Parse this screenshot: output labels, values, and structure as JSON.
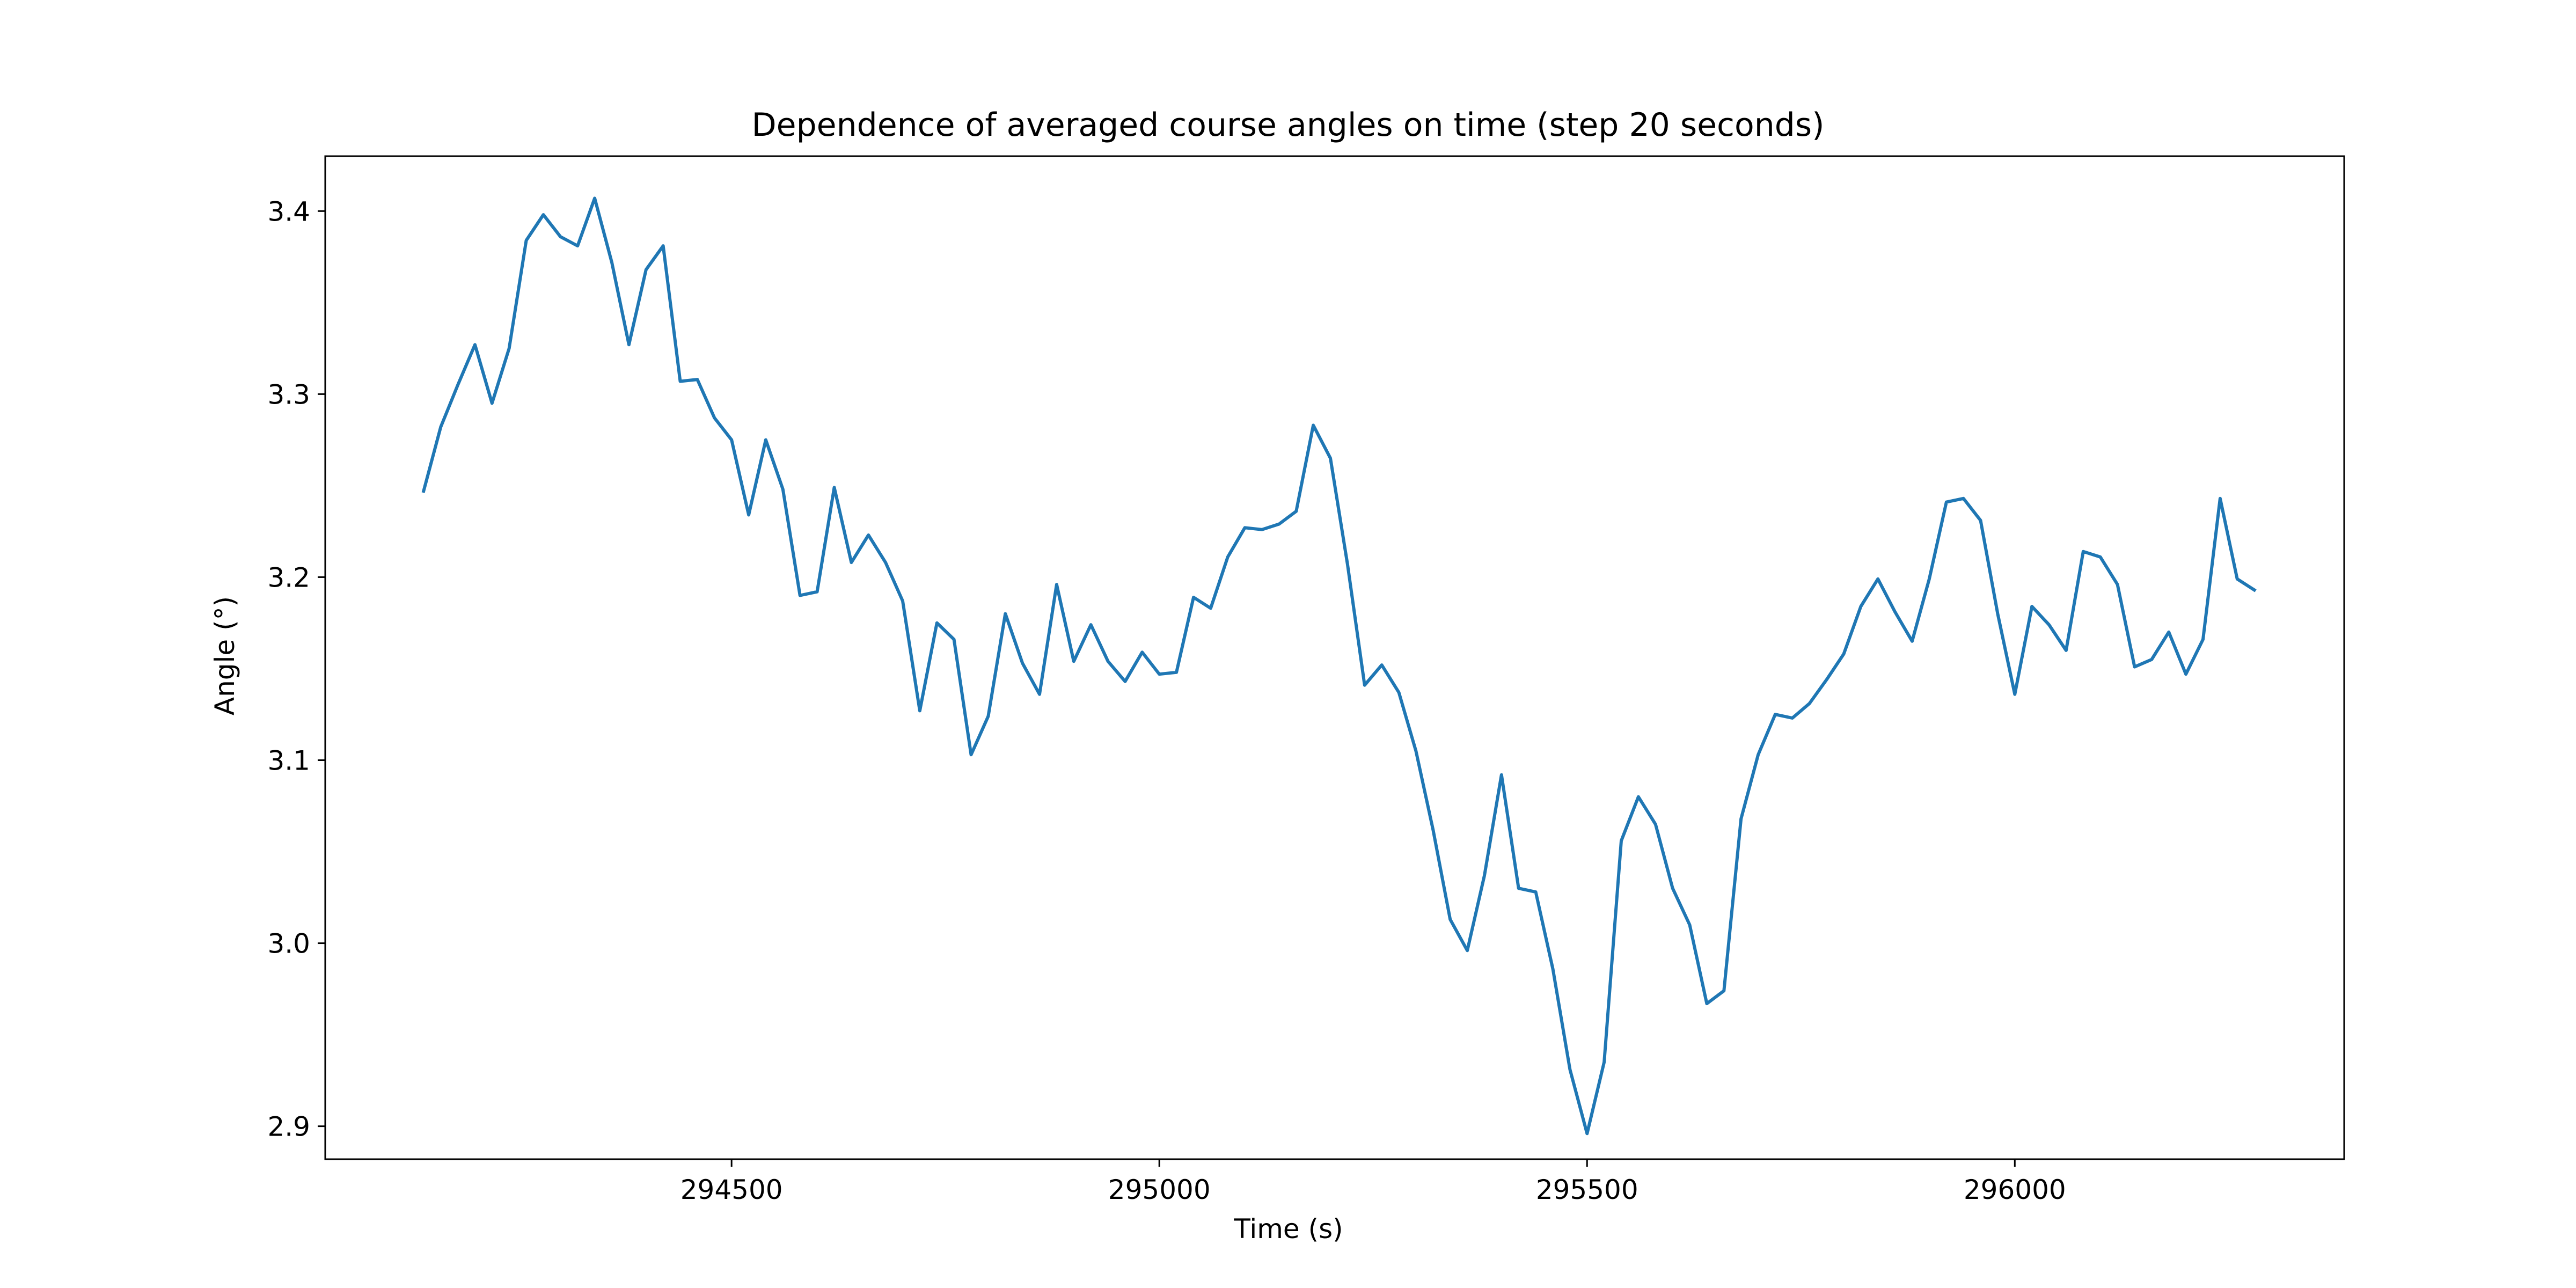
{
  "chart_data": {
    "type": "line",
    "title": "Dependence of averaged course angles on time (step 20 seconds)",
    "xlabel": "Time (s)",
    "ylabel": "Angle (°)",
    "xlim": [
      294025,
      296385
    ],
    "ylim": [
      2.882,
      3.43
    ],
    "xticks": [
      294500,
      295000,
      295500,
      296000
    ],
    "xtick_labels": [
      "294500",
      "295000",
      "295500",
      "296000"
    ],
    "yticks": [
      2.9,
      3.0,
      3.1,
      3.2,
      3.3,
      3.4
    ],
    "ytick_labels": [
      "2.9",
      "3.0",
      "3.1",
      "3.2",
      "3.3",
      "3.4"
    ],
    "grid": false,
    "series": [
      {
        "color": "#1f77b4",
        "x": [
          294140,
          294160,
          294180,
          294200,
          294220,
          294240,
          294260,
          294280,
          294300,
          294320,
          294340,
          294360,
          294380,
          294400,
          294420,
          294440,
          294460,
          294480,
          294500,
          294520,
          294540,
          294560,
          294580,
          294600,
          294620,
          294640,
          294660,
          294680,
          294700,
          294720,
          294740,
          294760,
          294780,
          294800,
          294820,
          294840,
          294860,
          294880,
          294900,
          294920,
          294940,
          294960,
          294980,
          295000,
          295020,
          295040,
          295060,
          295080,
          295100,
          295120,
          295140,
          295160,
          295180,
          295200,
          295220,
          295240,
          295260,
          295280,
          295300,
          295320,
          295340,
          295360,
          295380,
          295400,
          295420,
          295440,
          295460,
          295480,
          295500,
          295520,
          295540,
          295560,
          295580,
          295600,
          295620,
          295640,
          295660,
          295680,
          295700,
          295720,
          295740,
          295760,
          295780,
          295800,
          295820,
          295840,
          295860,
          295880,
          295900,
          295920,
          295940,
          295960,
          295980,
          296000,
          296020,
          296040,
          296060,
          296080,
          296100,
          296120,
          296140,
          296160,
          296180,
          296200,
          296220,
          296240,
          296260,
          296280
        ],
        "y": [
          3.247,
          3.282,
          3.305,
          3.327,
          3.295,
          3.325,
          3.384,
          3.398,
          3.386,
          3.381,
          3.407,
          3.372,
          3.327,
          3.368,
          3.381,
          3.307,
          3.308,
          3.287,
          3.275,
          3.234,
          3.275,
          3.248,
          3.19,
          3.192,
          3.249,
          3.208,
          3.223,
          3.208,
          3.187,
          3.127,
          3.175,
          3.166,
          3.103,
          3.124,
          3.18,
          3.153,
          3.136,
          3.196,
          3.154,
          3.174,
          3.154,
          3.143,
          3.159,
          3.147,
          3.148,
          3.189,
          3.183,
          3.211,
          3.227,
          3.226,
          3.229,
          3.236,
          3.283,
          3.265,
          3.207,
          3.141,
          3.152,
          3.137,
          3.105,
          3.062,
          3.013,
          2.996,
          3.037,
          3.092,
          3.03,
          3.028,
          2.986,
          2.931,
          2.896,
          2.935,
          3.056,
          3.08,
          3.065,
          3.03,
          3.01,
          2.967,
          2.974,
          3.068,
          3.103,
          3.125,
          3.123,
          3.131,
          3.144,
          3.158,
          3.184,
          3.199,
          3.181,
          3.165,
          3.199,
          3.241,
          3.243,
          3.231,
          3.18,
          3.136,
          3.184,
          3.174,
          3.16,
          3.214,
          3.211,
          3.196,
          3.151,
          3.155,
          3.17,
          3.147,
          3.166,
          3.243,
          3.199,
          3.193
        ]
      }
    ]
  }
}
